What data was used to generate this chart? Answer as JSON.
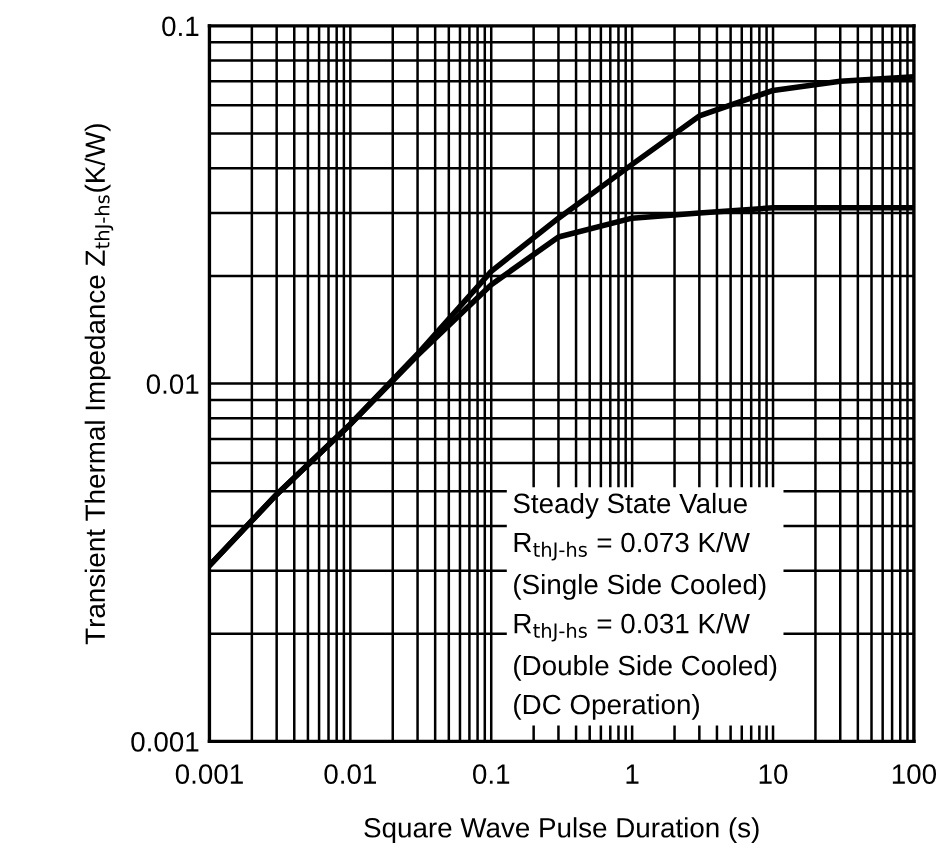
{
  "chart_data": {
    "type": "line",
    "xlabel": "Square Wave Pulse Duration (s)",
    "ylabel": "Transient Thermal Impedance Z$_{thJ-hs}$(K/W)",
    "log": "xy",
    "grid": true,
    "marker": "none",
    "line_style": "solid",
    "xlim": [
      0.001,
      100
    ],
    "ylim": [
      0.001,
      0.1
    ],
    "xticks": [
      {
        "value": 0.001,
        "label": "0.001"
      },
      {
        "value": 0.01,
        "label": "0.01"
      },
      {
        "value": 0.1,
        "label": "0.1"
      },
      {
        "value": 1,
        "label": "1"
      },
      {
        "value": 10,
        "label": "10"
      },
      {
        "value": 100,
        "label": "100"
      }
    ],
    "yticks": [
      {
        "value": 0.001,
        "label": "0.001"
      },
      {
        "value": 0.01,
        "label": "0.01"
      },
      {
        "value": 0.1,
        "label": "0.1"
      }
    ],
    "x": [
      0.001,
      0.003,
      0.01,
      0.03,
      0.1,
      0.3,
      1,
      3,
      10,
      30,
      100
    ],
    "series": [
      {
        "color": "#000000",
        "values": [
          0.0031,
          0.0049,
          0.0077,
          0.0121,
          0.0206,
          0.029,
          0.041,
          0.056,
          0.066,
          0.07,
          0.072
        ]
      },
      {
        "color": "#000000",
        "values": [
          0.0031,
          0.0049,
          0.0077,
          0.012,
          0.0189,
          0.0257,
          0.029,
          0.03,
          0.031,
          0.031,
          0.031
        ]
      }
    ],
    "annotations": [
      "Steady State Value",
      "R$_{thJ-hs}$ = 0.073 K/W",
      "(Single Side Cooled)",
      "R$_{thJ-hs}$ = 0.031 K/W",
      "(Double Side Cooled)",
      "(DC Operation)"
    ]
  }
}
